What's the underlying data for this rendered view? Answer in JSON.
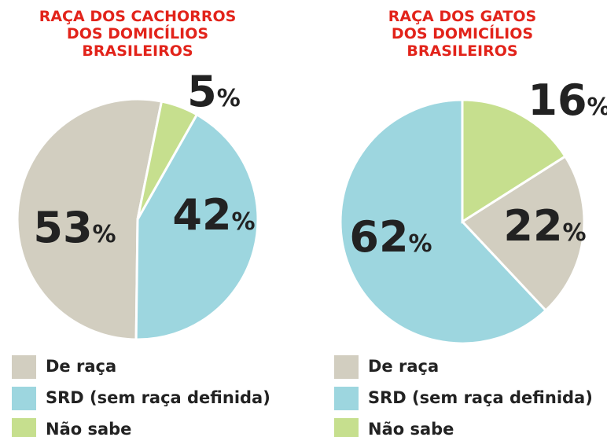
{
  "chart_data": [
    {
      "type": "pie",
      "title": [
        "RAÇA DOS CACHORROS",
        "DOS DOMICÍLIOS",
        "BRASILEIROS"
      ],
      "categories": [
        "De raça",
        "SRD (sem raça definida)",
        "Não sabe"
      ],
      "values": [
        53,
        42,
        5
      ],
      "value_labels": [
        "53%",
        "42%",
        "5%"
      ],
      "colors": [
        "#d2cec0",
        "#9dd6df",
        "#c6df8e"
      ]
    },
    {
      "type": "pie",
      "title": [
        "RAÇA DOS GATOS",
        "DOS DOMICÍLIOS",
        "BRASILEIROS"
      ],
      "categories": [
        "De raça",
        "SRD (sem raça definida)",
        "Não sabe"
      ],
      "values": [
        22,
        62,
        16
      ],
      "value_labels": [
        "22%",
        "62%",
        "16%"
      ],
      "colors": [
        "#d2cec0",
        "#9dd6df",
        "#c6df8e"
      ]
    }
  ]
}
